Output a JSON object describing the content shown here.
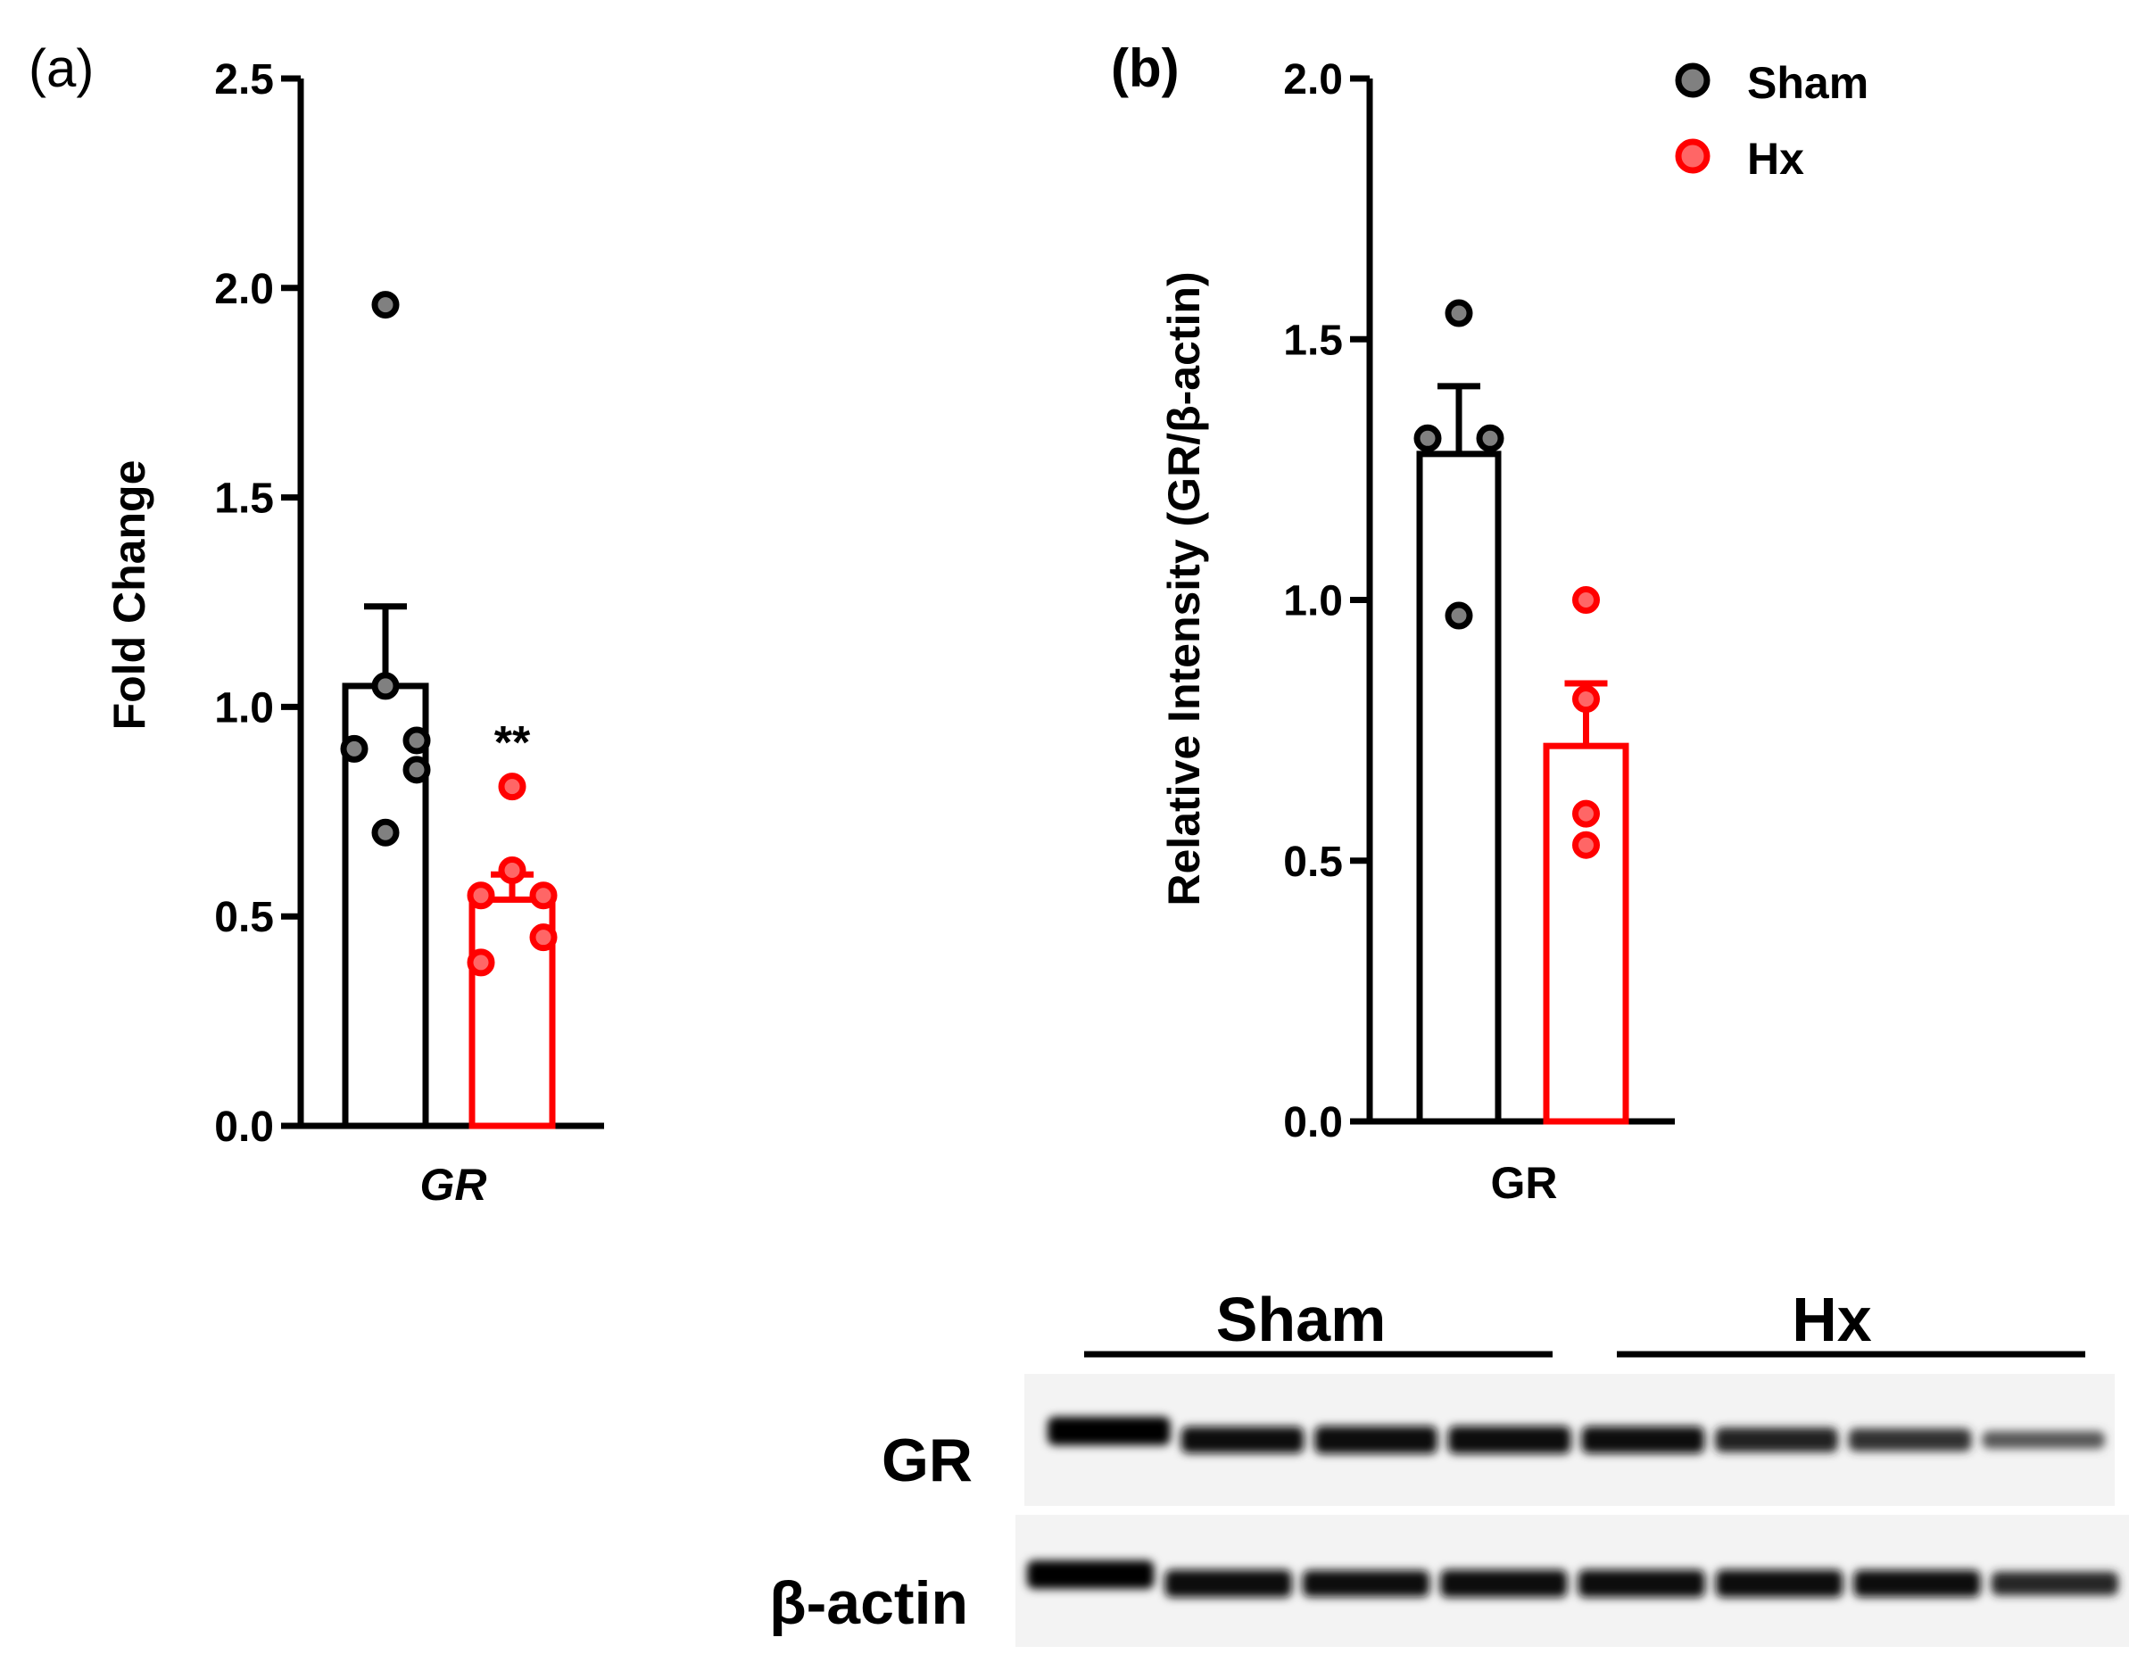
{
  "legend": {
    "entries": [
      {
        "name": "Sham",
        "color": "#808080"
      },
      {
        "name": "Hx",
        "color": "#ff0000"
      }
    ],
    "placement": "top-right"
  },
  "colors": {
    "sham_edge": "#000000",
    "sham_fill": "#808080",
    "hx_edge": "#ff0000",
    "hx_fill": "#ff6666"
  },
  "chart_data": [
    {
      "type": "bar",
      "panel_label": "(a)",
      "categories": [
        "GR"
      ],
      "category_style": "italic",
      "xlabel": "",
      "ylabel": "Fold Change",
      "ylim": [
        0,
        2.5
      ],
      "yticks": [
        0.0,
        0.5,
        1.0,
        1.5,
        2.0,
        2.5
      ],
      "ytick_labels": [
        "0.0",
        "0.5",
        "1.0",
        "1.5",
        "2.0",
        "2.5"
      ],
      "series": [
        {
          "name": "Sham",
          "mean": 1.05,
          "sem": 0.19,
          "points": [
            1.96,
            1.05,
            0.9,
            0.92,
            0.85,
            0.7
          ]
        },
        {
          "name": "Hx",
          "mean": 0.54,
          "sem": 0.06,
          "points": [
            0.81,
            0.61,
            0.55,
            0.55,
            0.45,
            0.39
          ],
          "annotation": "**"
        }
      ]
    },
    {
      "type": "bar",
      "panel_label": "(b)",
      "categories": [
        "GR"
      ],
      "category_style": "normal",
      "xlabel": "",
      "ylabel": "Relative Intensity (GR/β-actin)",
      "ylim": [
        0,
        2.0
      ],
      "yticks": [
        0.0,
        0.5,
        1.0,
        1.5,
        2.0
      ],
      "ytick_labels": [
        "0.0",
        "0.5",
        "1.0",
        "1.5",
        "2.0"
      ],
      "series": [
        {
          "name": "Sham",
          "mean": 1.28,
          "sem": 0.13,
          "points": [
            1.55,
            1.31,
            1.31,
            0.97
          ]
        },
        {
          "name": "Hx",
          "mean": 0.72,
          "sem": 0.12,
          "points": [
            1.0,
            0.81,
            0.59,
            0.53
          ]
        }
      ]
    }
  ],
  "blot": {
    "group_labels": [
      "Sham",
      "Hx"
    ],
    "rows": [
      {
        "label": "GR",
        "intensities": [
          1.0,
          0.9,
          0.95,
          0.95,
          0.92,
          0.8,
          0.7,
          0.45
        ]
      },
      {
        "label": "β-actin",
        "intensities": [
          1.0,
          0.95,
          0.9,
          0.95,
          0.95,
          0.95,
          0.92,
          0.75
        ]
      }
    ]
  }
}
